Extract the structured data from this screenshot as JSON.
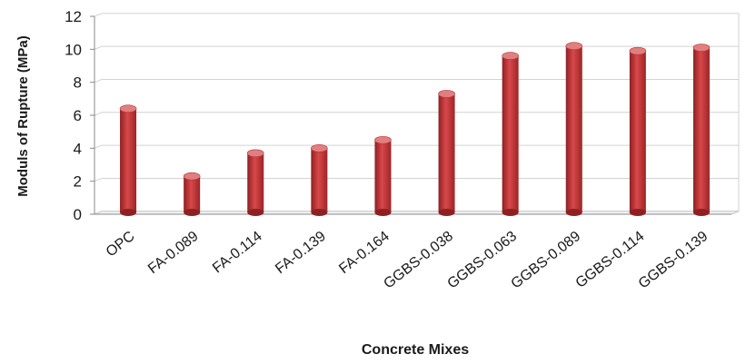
{
  "chart_data": {
    "type": "bar",
    "categories": [
      "OPC",
      "FA-0.089",
      "FA-0.114",
      "FA-0.139",
      "FA-0.164",
      "GGBS-0.038",
      "GGBS-0.063",
      "GGBS-0.089",
      "GGBS-0.114",
      "GGBS-0.139"
    ],
    "values": [
      6.4,
      2.3,
      3.7,
      4.0,
      4.5,
      7.3,
      9.6,
      10.2,
      9.9,
      10.1
    ],
    "xlabel": "Concrete Mixes",
    "ylabel": "Moduls of Rupture (MPa)",
    "ylim": [
      0,
      12
    ],
    "yticks": [
      0,
      2,
      4,
      6,
      8,
      10,
      12
    ],
    "grid": true,
    "legend": "none",
    "bar_color": "#c0393b"
  }
}
